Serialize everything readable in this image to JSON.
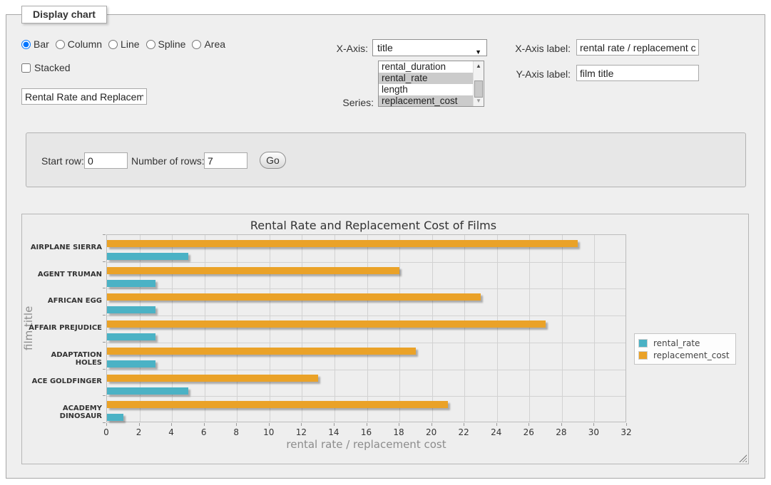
{
  "panel": {
    "legend": "Display chart"
  },
  "chart_type": {
    "options": [
      {
        "label": "Bar",
        "selected": true
      },
      {
        "label": "Column",
        "selected": false
      },
      {
        "label": "Line",
        "selected": false
      },
      {
        "label": "Spline",
        "selected": false
      },
      {
        "label": "Area",
        "selected": false
      }
    ]
  },
  "stacked": {
    "label": "Stacked",
    "checked": false
  },
  "title_input": {
    "value": "Rental Rate and Replacement Cost of Films"
  },
  "x_axis": {
    "label": "X-Axis:",
    "selected": "title"
  },
  "series": {
    "label": "Series:",
    "options": [
      {
        "label": "rental_duration",
        "selected": false
      },
      {
        "label": "rental_rate",
        "selected": true
      },
      {
        "label": "length",
        "selected": false
      },
      {
        "label": "replacement_cost",
        "selected": true
      }
    ]
  },
  "x_axis_label": {
    "label": "X-Axis label:",
    "value": "rental rate / replacement cost"
  },
  "y_axis_label": {
    "label": "Y-Axis label:",
    "value": "film title"
  },
  "rows_controls": {
    "start_row_label": "Start row:",
    "start_row_value": "0",
    "num_rows_label": "Number of rows:",
    "num_rows_value": "7",
    "go_label": "Go"
  },
  "icons": {
    "dropdown_arrow": "▼",
    "scroll_up": "▲",
    "scroll_down": "▼"
  },
  "chart_data": {
    "type": "bar",
    "orientation": "horizontal",
    "title": "Rental Rate and Replacement Cost of Films",
    "categories": [
      "AIRPLANE SIERRA",
      "AGENT TRUMAN",
      "AFRICAN EGG",
      "AFFAIR PREJUDICE",
      "ADAPTATION HOLES",
      "ACE GOLDFINGER",
      "ACADEMY DINOSAUR"
    ],
    "series": [
      {
        "name": "rental_rate",
        "color": "#4bb2c5",
        "values": [
          4.99,
          2.99,
          2.99,
          2.99,
          2.99,
          4.99,
          0.99
        ]
      },
      {
        "name": "replacement_cost",
        "color": "#eaa228",
        "values": [
          28.99,
          17.99,
          22.99,
          26.99,
          18.99,
          12.99,
          20.99
        ]
      }
    ],
    "xlabel": "rental rate / replacement cost",
    "ylabel": "film title",
    "xlim": [
      0,
      32
    ],
    "x_ticks": [
      0,
      2,
      4,
      6,
      8,
      10,
      12,
      14,
      16,
      18,
      20,
      22,
      24,
      26,
      28,
      30,
      32
    ],
    "grid": true,
    "legend_position": "right"
  }
}
